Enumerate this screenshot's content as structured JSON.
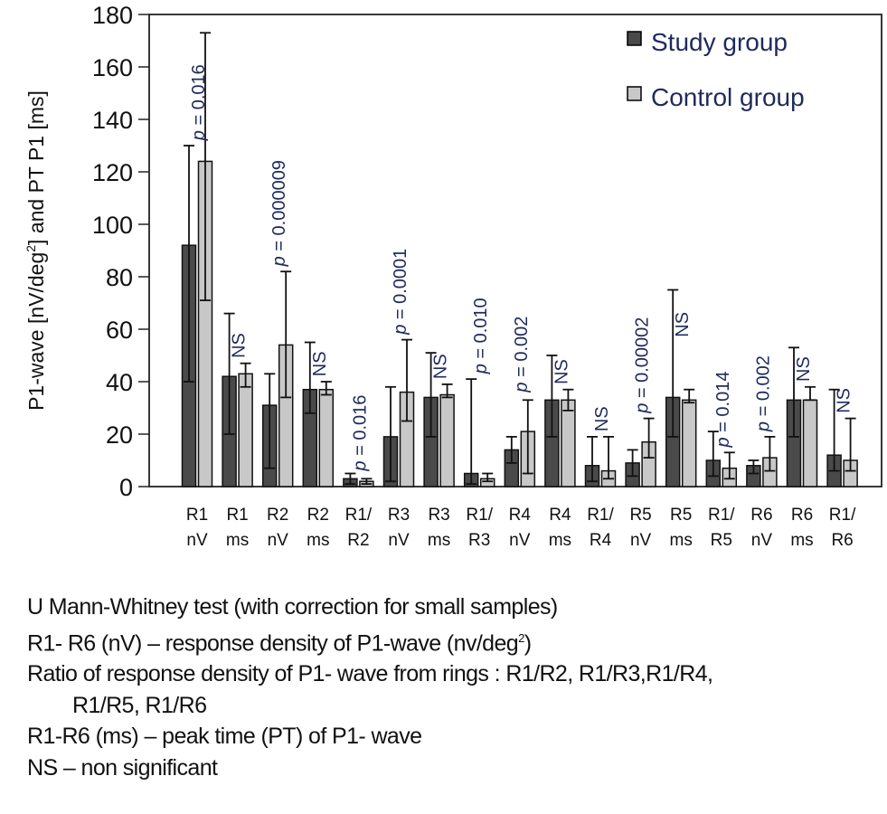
{
  "chart_data": {
    "type": "bar",
    "title": "",
    "ylabel": "P1-wave [nV/deg²] and PT P1 [ms]",
    "ylabel_parts": {
      "pre": "P1-wave [nV/deg",
      "sup": "2",
      "post": "] and PT P1 [ms]"
    },
    "xlabel": "",
    "ylim": [
      0,
      180
    ],
    "yticks": [
      0,
      20,
      40,
      60,
      80,
      100,
      120,
      140,
      160,
      180
    ],
    "grid": false,
    "legend_position": "top-right",
    "categories": [
      [
        "R1",
        "nV"
      ],
      [
        "R1",
        "ms"
      ],
      [
        "R2",
        "nV"
      ],
      [
        "R2",
        "ms"
      ],
      [
        "R1/",
        "R2"
      ],
      [
        "R3",
        "nV"
      ],
      [
        "R3",
        "ms"
      ],
      [
        "R1/",
        "R3"
      ],
      [
        "R4",
        "nV"
      ],
      [
        "R4",
        "ms"
      ],
      [
        "R1/",
        "R4"
      ],
      [
        "R5",
        "nV"
      ],
      [
        "R5",
        "ms"
      ],
      [
        "R1/",
        "R5"
      ],
      [
        "R6",
        "nV"
      ],
      [
        "R6",
        "ms"
      ],
      [
        "R1/",
        "R6"
      ]
    ],
    "series": [
      {
        "name": "Study group",
        "color": "#4a4a4a",
        "values": [
          92,
          42,
          31,
          37,
          3,
          19,
          34,
          5,
          14,
          33,
          8,
          9,
          34,
          10,
          8,
          33,
          12
        ],
        "err_low": [
          40,
          20,
          7,
          28,
          1,
          2,
          19,
          1,
          9,
          19,
          2,
          4,
          19,
          4,
          5,
          19,
          6
        ],
        "err_high": [
          130,
          66,
          43,
          55,
          5,
          38,
          51,
          41,
          19,
          50,
          19,
          14,
          75,
          21,
          10,
          53,
          37
        ]
      },
      {
        "name": "Control group",
        "color": "#c8c8c8",
        "values": [
          124,
          43,
          54,
          37,
          2,
          36,
          35,
          3,
          21,
          33,
          6,
          17,
          33,
          7,
          11,
          33,
          10
        ],
        "err_low": [
          71,
          38,
          34,
          35,
          1,
          25,
          34,
          2,
          5,
          29,
          3,
          11,
          32,
          3,
          6,
          33,
          6
        ],
        "err_high": [
          173,
          47,
          82,
          40,
          3,
          56,
          39,
          5,
          33,
          37,
          19,
          26,
          37,
          13,
          19,
          38,
          26
        ]
      }
    ],
    "annotations": [
      {
        "category_index": 0,
        "text": "= 0.016",
        "italic_p": true,
        "anchor_value": 132
      },
      {
        "category_index": 1,
        "text": "NS",
        "italic_p": false,
        "anchor_value": 49
      },
      {
        "category_index": 2,
        "text": "= 0.000009",
        "italic_p": true,
        "anchor_value": 84
      },
      {
        "category_index": 3,
        "text": "NS",
        "italic_p": false,
        "anchor_value": 42
      },
      {
        "category_index": 4,
        "text": "= 0.016",
        "italic_p": true,
        "anchor_value": 6
      },
      {
        "category_index": 5,
        "text": "= 0.0001",
        "italic_p": true,
        "anchor_value": 58
      },
      {
        "category_index": 6,
        "text": "NS",
        "italic_p": false,
        "anchor_value": 41
      },
      {
        "category_index": 7,
        "text": "= 0.010",
        "italic_p": true,
        "anchor_value": 43
      },
      {
        "category_index": 8,
        "text": "= 0.002",
        "italic_p": true,
        "anchor_value": 36
      },
      {
        "category_index": 9,
        "text": "NS",
        "italic_p": false,
        "anchor_value": 39
      },
      {
        "category_index": 10,
        "text": "NS",
        "italic_p": false,
        "anchor_value": 21
      },
      {
        "category_index": 11,
        "text": "= 0.00002",
        "italic_p": true,
        "anchor_value": 28
      },
      {
        "category_index": 12,
        "text": "NS",
        "italic_p": false,
        "anchor_value": 57
      },
      {
        "category_index": 13,
        "text": "= 0.014",
        "italic_p": true,
        "anchor_value": 15
      },
      {
        "category_index": 14,
        "text": "= 0.002",
        "italic_p": true,
        "anchor_value": 21
      },
      {
        "category_index": 15,
        "text": "NS",
        "italic_p": false,
        "anchor_value": 40
      },
      {
        "category_index": 16,
        "text": "NS",
        "italic_p": false,
        "anchor_value": 28
      }
    ]
  },
  "legend": {
    "study": "Study group",
    "control": "Control group"
  },
  "notes": {
    "line1": "U Mann-Whitney test (with correction for small samples)",
    "line2_pre": "R1- R6 (nV) – response density of P1-wave (nv/deg",
    "line2_sup": "2",
    "line2_post": ")",
    "line3": "Ratio of response density of P1- wave from rings : R1/R2, R1/R3,R1/R4,",
    "line4": "R1/R5, R1/R6",
    "line5": "R1-R6 (ms) – peak time (PT) of P1- wave",
    "line6": "NS – non significant"
  }
}
